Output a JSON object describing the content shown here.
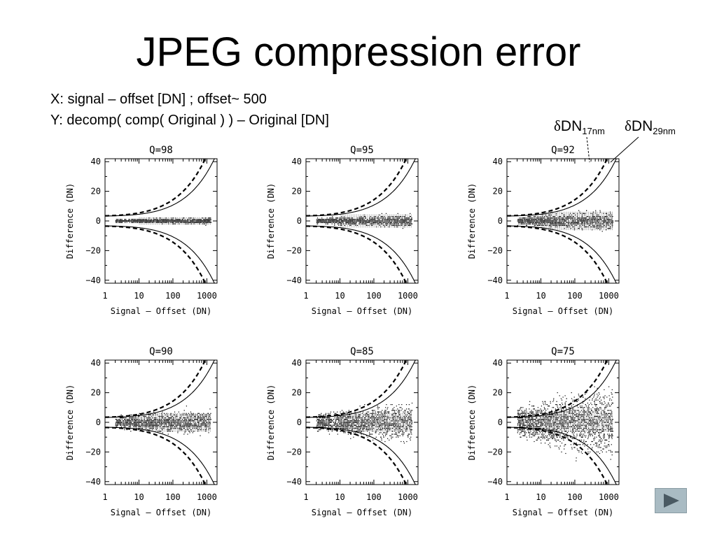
{
  "slide": {
    "title": "JPEG compression error",
    "description_x": "X: signal – offset [DN] ; offset~ 500",
    "description_y": "Y: decomp( comp( Original ) ) – Original [DN]",
    "legend": {
      "dashed": {
        "symbol": "δ",
        "base": "DN",
        "subscript": "17nm"
      },
      "solid": {
        "symbol": "δ",
        "base": "DN",
        "subscript": "29nm"
      }
    },
    "next_button": "next-slide-arrow-icon"
  },
  "chart_data": [
    {
      "type": "scatter",
      "title": "Q=98",
      "xlabel": "Signal – Offset (DN)",
      "ylabel": "Difference (DN)",
      "xscale": "log",
      "xlim": [
        1,
        2000
      ],
      "ylim": [
        -42,
        42
      ],
      "xticks": [
        "1",
        "10",
        "100",
        "1000"
      ],
      "yticks": [
        "40",
        "20",
        "0",
        "−20",
        "−40"
      ],
      "scatter_spread_dn": 2,
      "scatter_x_range": [
        2,
        1300
      ],
      "curves": [
        {
          "name": "δDN17nm",
          "style": "dashed",
          "formula": "±sqrt(10 + 1.95*x)"
        },
        {
          "name": "δDN29nm",
          "style": "solid",
          "formula": "±sqrt(10 + 1.05*x)"
        }
      ]
    },
    {
      "type": "scatter",
      "title": "Q=95",
      "xlabel": "Signal – Offset (DN)",
      "ylabel": "Difference (DN)",
      "xscale": "log",
      "xlim": [
        1,
        2000
      ],
      "ylim": [
        -42,
        42
      ],
      "xticks": [
        "1",
        "10",
        "100",
        "1000"
      ],
      "yticks": [
        "40",
        "20",
        "0",
        "−20",
        "−40"
      ],
      "scatter_spread_dn": 4,
      "scatter_x_range": [
        2,
        1300
      ],
      "curves": [
        {
          "name": "δDN17nm",
          "style": "dashed",
          "formula": "±sqrt(10 + 1.95*x)"
        },
        {
          "name": "δDN29nm",
          "style": "solid",
          "formula": "±sqrt(10 + 1.05*x)"
        }
      ]
    },
    {
      "type": "scatter",
      "title": "Q=92",
      "xlabel": "Signal – Offset (DN)",
      "ylabel": "Difference (DN)",
      "xscale": "log",
      "xlim": [
        1,
        2000
      ],
      "ylim": [
        -42,
        42
      ],
      "xticks": [
        "1",
        "10",
        "100",
        "1000"
      ],
      "yticks": [
        "40",
        "20",
        "0",
        "−20",
        "−40"
      ],
      "scatter_spread_dn": 6,
      "scatter_x_range": [
        2,
        1300
      ],
      "curves": [
        {
          "name": "δDN17nm",
          "style": "dashed",
          "formula": "±sqrt(10 + 1.95*x)"
        },
        {
          "name": "δDN29nm",
          "style": "solid",
          "formula": "±sqrt(10 + 1.05*x)"
        }
      ]
    },
    {
      "type": "scatter",
      "title": "Q=90",
      "xlabel": "Signal – Offset (DN)",
      "ylabel": "Difference (DN)",
      "xscale": "log",
      "xlim": [
        1,
        2000
      ],
      "ylim": [
        -42,
        42
      ],
      "xticks": [
        "1",
        "10",
        "100",
        "1000"
      ],
      "yticks": [
        "40",
        "20",
        "0",
        "−20",
        "−40"
      ],
      "scatter_spread_dn": 8,
      "scatter_x_range": [
        2,
        1300
      ],
      "curves": [
        {
          "name": "δDN17nm",
          "style": "dashed",
          "formula": "±sqrt(10 + 1.95*x)"
        },
        {
          "name": "δDN29nm",
          "style": "solid",
          "formula": "±sqrt(10 + 1.05*x)"
        }
      ]
    },
    {
      "type": "scatter",
      "title": "Q=85",
      "xlabel": "Signal – Offset (DN)",
      "ylabel": "Difference (DN)",
      "xscale": "log",
      "xlim": [
        1,
        2000
      ],
      "ylim": [
        -42,
        42
      ],
      "xticks": [
        "1",
        "10",
        "100",
        "1000"
      ],
      "yticks": [
        "40",
        "20",
        "0",
        "−20",
        "−40"
      ],
      "scatter_spread_dn": 12,
      "scatter_x_range": [
        2,
        1300
      ],
      "curves": [
        {
          "name": "δDN17nm",
          "style": "dashed",
          "formula": "±sqrt(10 + 1.95*x)"
        },
        {
          "name": "δDN29nm",
          "style": "solid",
          "formula": "±sqrt(10 + 1.05*x)"
        }
      ]
    },
    {
      "type": "scatter",
      "title": "Q=75",
      "xlabel": "Signal – Offset (DN)",
      "ylabel": "Difference (DN)",
      "xscale": "log",
      "xlim": [
        1,
        2000
      ],
      "ylim": [
        -42,
        42
      ],
      "xticks": [
        "1",
        "10",
        "100",
        "1000"
      ],
      "yticks": [
        "40",
        "20",
        "0",
        "−20",
        "−40"
      ],
      "scatter_spread_dn": 22,
      "scatter_x_range": [
        2,
        1300
      ],
      "curves": [
        {
          "name": "δDN17nm",
          "style": "dashed",
          "formula": "±sqrt(10 + 1.95*x)"
        },
        {
          "name": "δDN29nm",
          "style": "solid",
          "formula": "±sqrt(10 + 1.05*x)"
        }
      ]
    }
  ]
}
